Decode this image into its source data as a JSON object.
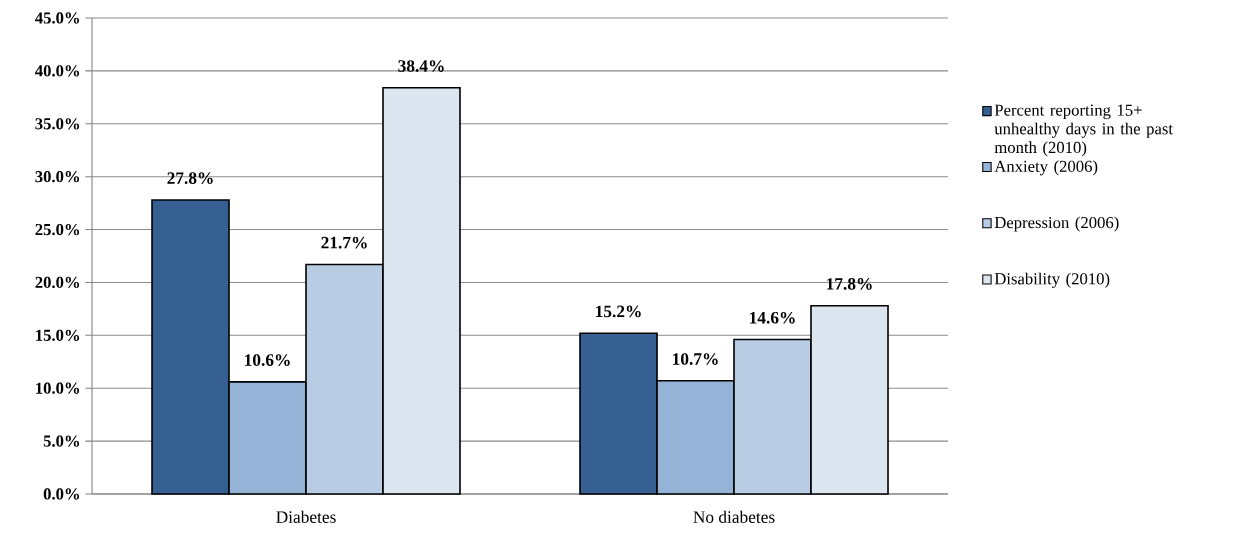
{
  "chart_data": {
    "type": "bar",
    "categories": [
      "Diabetes",
      "No diabetes"
    ],
    "series": [
      {
        "name": "Percent reporting 15+ unhealthy days in the past month (2010)",
        "color": "#366092",
        "values": [
          27.8,
          15.2
        ],
        "value_labels": [
          "27.8%",
          "15.2%"
        ]
      },
      {
        "name": "Anxiety (2006)",
        "color": "#95b3d7",
        "values": [
          10.6,
          10.7
        ],
        "value_labels": [
          "10.6%",
          "10.7%"
        ]
      },
      {
        "name": "Depression (2006)",
        "color": "#b8cce4",
        "values": [
          21.7,
          14.6
        ],
        "value_labels": [
          "21.7%",
          "14.6%"
        ]
      },
      {
        "name": "Disability (2010)",
        "color": "#dce6f1",
        "values": [
          38.4,
          17.8
        ],
        "value_labels": [
          "38.4%",
          "17.8%"
        ]
      }
    ],
    "ylim": [
      0,
      45
    ],
    "yticks": [
      {
        "value": 0,
        "label": "0.0%"
      },
      {
        "value": 5,
        "label": "5.0%"
      },
      {
        "value": 10,
        "label": "10.0%"
      },
      {
        "value": 15,
        "label": "15.0%"
      },
      {
        "value": 20,
        "label": "20.0%"
      },
      {
        "value": 25,
        "label": "25.0%"
      },
      {
        "value": 30,
        "label": "30.0%"
      },
      {
        "value": 35,
        "label": "35.0%"
      },
      {
        "value": 40,
        "label": "40.0%"
      },
      {
        "value": 45,
        "label": "45.0%"
      }
    ],
    "grid": "y",
    "legend": "right"
  }
}
